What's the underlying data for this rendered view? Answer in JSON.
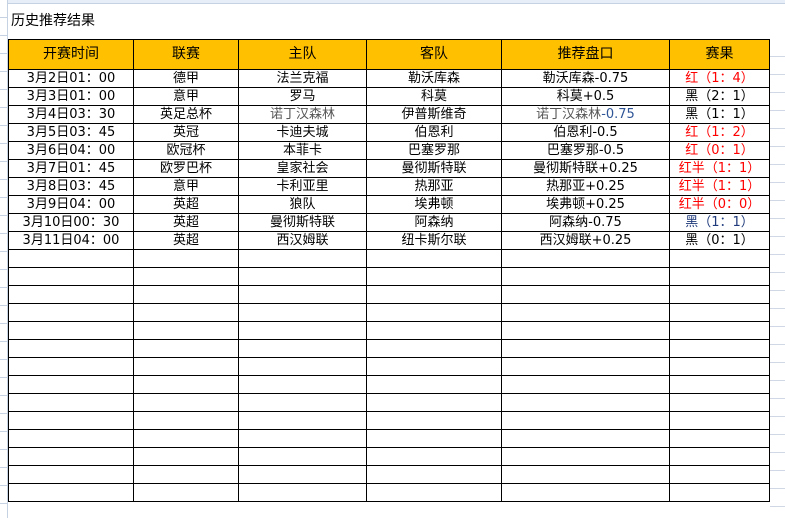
{
  "title": "历史推荐结果",
  "headers": [
    "开赛时间",
    "联赛",
    "主队",
    "客队",
    "推荐盘口",
    "赛果"
  ],
  "colors": {
    "header_bg": "#ffc000",
    "win": "#ff0000",
    "loss": "#000000",
    "alt": "#1f3a7a"
  },
  "rows": [
    {
      "time": "3月2日01：00",
      "league": "德甲",
      "home": "法兰克福",
      "away": "勒沃库森",
      "pick": "勒沃库森-0.75",
      "result": "红（1：4）",
      "rc": "red"
    },
    {
      "time": "3月3日01：00",
      "league": "意甲",
      "home": "罗马",
      "away": "科莫",
      "pick": "科莫+0.5",
      "result": "黑（2：1）",
      "rc": ""
    },
    {
      "time": "3月4日03：30",
      "league": "英足总杯",
      "home": "诺丁汉森林",
      "away": "伊普斯维奇",
      "pick": "诺丁汉森林",
      "pick_num": "-0.75",
      "result": "黑（1：1）",
      "rc": ""
    },
    {
      "time": "3月5日03：45",
      "league": "英冠",
      "home": "卡迪夫城",
      "away": "伯恩利",
      "pick": "伯恩利-0.5",
      "result": "红（1：2）",
      "rc": "red"
    },
    {
      "time": "3月6日04：00",
      "league": "欧冠杯",
      "home": "本菲卡",
      "away": "巴塞罗那",
      "pick": "巴塞罗那-0.5",
      "result": "红（0：1）",
      "rc": "red"
    },
    {
      "time": "3月7日01：45",
      "league": "欧罗巴杯",
      "home": "皇家社会",
      "away": "曼彻斯特联",
      "pick": "曼彻斯特联+0.25",
      "result": "红半（1：1）",
      "rc": "red"
    },
    {
      "time": "3月8日03：45",
      "league": "意甲",
      "home": "卡利亚里",
      "away": "热那亚",
      "pick": "热那亚+0.25",
      "result": "红半（1：1）",
      "rc": "red"
    },
    {
      "time": "3月9日04：00",
      "league": "英超",
      "home": "狼队",
      "away": "埃弗顿",
      "pick": "埃弗顿+0.25",
      "result": "红半（0：0）",
      "rc": "red"
    },
    {
      "time": "3月10日00：30",
      "league": "英超",
      "home": "曼彻斯特联",
      "away": "阿森纳",
      "pick": "阿森纳-0.75",
      "result": "黑（1：1）",
      "rc": "blue"
    },
    {
      "time": "3月11日04：00",
      "league": "英超",
      "home": "西汉姆联",
      "away": "纽卡斯尔联",
      "pick": "西汉姆联+0.25",
      "result": "黑（0：1）",
      "rc": ""
    }
  ]
}
